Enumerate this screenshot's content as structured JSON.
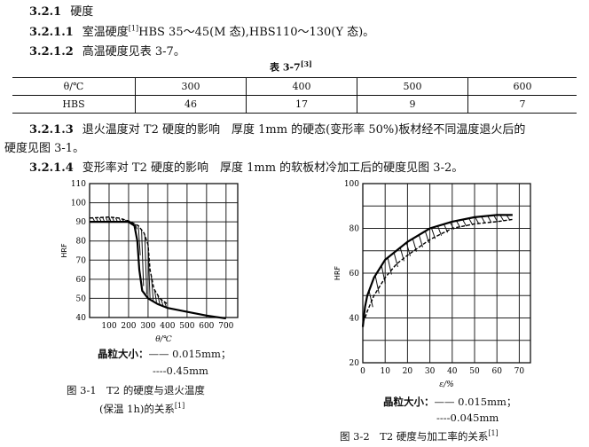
{
  "sections": [
    {
      "num": "3.2.1",
      "text": "硬度"
    },
    {
      "num": "3.2.1.1",
      "text": "室温硬度",
      "sup": "[1]",
      "rest": "HBS 35～45(M 态),HBS110～130(Y 态)。"
    },
    {
      "num": "3.2.1.2",
      "text": "高温硬度见表 3-7。"
    },
    {
      "num": "3.2.1.3",
      "text": "退火温度对 T2 硬度的影响　厚度 1mm 的硬态(变形率 50%)板材经不同温度退火后的",
      "cont": "硬度见图 3-1。"
    },
    {
      "num": "3.2.1.4",
      "text": "变形率对 T2 硬度的影响　厚度 1mm 的软板材冷加工后的硬度见图 3-2。"
    }
  ],
  "table": {
    "title": "表 3-7",
    "title_sup": "[3]",
    "header": [
      "θ/℃",
      "300",
      "400",
      "500",
      "600"
    ],
    "row": [
      "HBS",
      "46",
      "17",
      "9",
      "7"
    ]
  },
  "chart_data": [
    {
      "type": "line",
      "xlabel": "θ/℃",
      "ylabel": "HRF",
      "xlim": [
        0,
        760
      ],
      "ylim": [
        40,
        110
      ],
      "xticks": [
        100,
        200,
        300,
        400,
        500,
        600,
        700
      ],
      "yticks": [
        40,
        50,
        60,
        70,
        80,
        90,
        100,
        110
      ],
      "grid": true,
      "legend_title": "晶粒大小：",
      "legend": [
        "—— 0.015mm；",
        "----0.45mm"
      ],
      "caption": [
        "图 3-1　T2 的硬度与退火温度",
        "(保温 1h)的关系"
      ],
      "caption_sup": "[1]",
      "series": [
        {
          "name": "0.015mm",
          "style": "solid",
          "x": [
            0,
            100,
            150,
            200,
            230,
            245,
            255,
            270,
            300,
            350,
            400,
            500,
            600,
            700
          ],
          "y": [
            90,
            90,
            90,
            90,
            88,
            80,
            65,
            54,
            50,
            47,
            45,
            43,
            41,
            39.5
          ]
        },
        {
          "name": "0.45mm",
          "style": "dashed",
          "x": [
            0,
            100,
            150,
            200,
            250,
            280,
            300,
            310,
            330,
            360,
            400
          ],
          "y": [
            92,
            92.5,
            92,
            90.5,
            88,
            84,
            78,
            65,
            55,
            50,
            47
          ]
        }
      ]
    },
    {
      "type": "line",
      "xlabel": "ε/%",
      "ylabel": "HRF",
      "xlim": [
        0,
        75
      ],
      "ylim": [
        20,
        100
      ],
      "xticks": [
        0,
        10,
        20,
        30,
        40,
        50,
        60,
        70
      ],
      "yticks": [
        20,
        40,
        60,
        80,
        100
      ],
      "grid": true,
      "legend_title": "晶粒大小：",
      "legend": [
        "—— 0.015mm；",
        "----0.045mm"
      ],
      "caption": [
        "图 3-2　T2 硬度与加工率的关系"
      ],
      "caption_sup": "[1]",
      "series": [
        {
          "name": "0.015mm",
          "style": "solid",
          "x": [
            0,
            1,
            2,
            5,
            10,
            15,
            20,
            30,
            40,
            50,
            60,
            67
          ],
          "y": [
            36,
            45,
            50,
            58,
            66,
            70,
            74,
            80,
            83,
            85,
            86,
            86
          ]
        },
        {
          "name": "0.045mm",
          "style": "dashed",
          "x": [
            0,
            1,
            2,
            5,
            10,
            15,
            20,
            30,
            40,
            50,
            60,
            67
          ],
          "y": [
            38,
            40,
            43,
            50,
            58,
            64,
            68,
            75,
            80,
            82,
            83,
            84
          ]
        }
      ]
    }
  ]
}
